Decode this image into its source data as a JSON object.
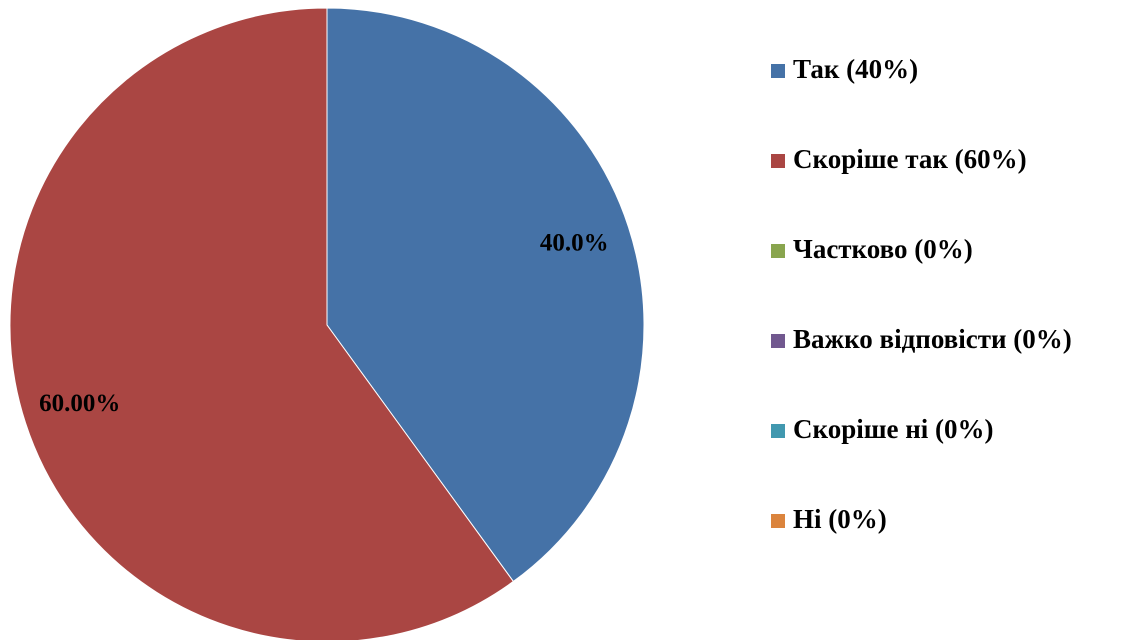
{
  "chart_data": {
    "type": "pie",
    "categories": [
      "Так (40%)",
      "Скоріше так (60%)",
      "Частково (0%)",
      "Важко відповісти (0%)",
      "Скоріше ні (0%)",
      "Ні (0%)"
    ],
    "values": [
      40,
      60,
      0,
      0,
      0,
      0
    ],
    "value_labels": [
      "40.0%",
      "60.00%",
      null,
      null,
      null,
      null
    ],
    "colors": [
      "#4572a7",
      "#aa4643",
      "#89a54e",
      "#71588f",
      "#4198af",
      "#db843d"
    ],
    "legend": "right"
  }
}
